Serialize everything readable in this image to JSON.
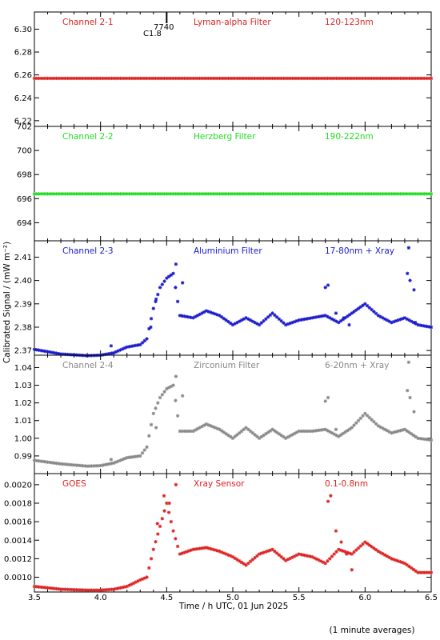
{
  "figure": {
    "xlabel": "Time / h UTC, 01 Jun 2025",
    "ylabel": "Calibrated Signal / (mW m⁻²)",
    "footnote": "(1 minute averages)",
    "marker_top": [
      "7740",
      "C1.8"
    ]
  },
  "chart_data": {
    "type": "scatter",
    "xlim": [
      3.5,
      6.5
    ],
    "x_ticks": [
      3.5,
      4.0,
      4.5,
      5.0,
      5.5,
      6.0,
      6.5
    ],
    "x_tick_labels": [
      "3.5",
      "4.0",
      "4.5",
      "5.0",
      "5.5",
      "6.0",
      "6.5"
    ],
    "x_minor_step": 0.1,
    "flare_marker_time": 4.5,
    "panels": [
      {
        "name": "Channel 2-1",
        "filter": "Lyman-alpha Filter",
        "band": "120-123nm",
        "color": "#dd2222",
        "ylim": [
          6.215,
          6.315
        ],
        "y_ticks": [
          6.22,
          6.24,
          6.26,
          6.28,
          6.3
        ],
        "y_tick_labels": [
          "6.22",
          "6.24",
          "6.26",
          "6.28",
          "6.30"
        ],
        "x_anchors": [
          3.5,
          6.5
        ],
        "y_anchors": [
          6.257,
          6.257
        ]
      },
      {
        "name": "Channel 2-2",
        "filter": "Herzberg Filter",
        "band": "190-222nm",
        "color": "#22dd22",
        "ylim": [
          692.5,
          702.0
        ],
        "y_ticks": [
          694,
          696,
          698,
          700,
          702
        ],
        "y_tick_labels": [
          "694",
          "696",
          "698",
          "700",
          "702"
        ],
        "x_anchors": [
          3.5,
          6.5
        ],
        "y_anchors": [
          696.4,
          696.4
        ]
      },
      {
        "name": "Channel 2-3",
        "filter": "Aluminium Filter",
        "band": "17-80nm + Xray",
        "color": "#1a1acc",
        "ylim": [
          2.368,
          2.417
        ],
        "y_ticks": [
          2.37,
          2.38,
          2.39,
          2.4,
          2.41
        ],
        "y_tick_labels": [
          "2.37",
          "2.38",
          "2.39",
          "2.40",
          "2.41"
        ],
        "x_anchors": [
          3.5,
          3.7,
          3.9,
          4.0,
          4.1,
          4.2,
          4.3,
          4.35,
          4.4,
          4.45,
          4.5,
          4.55,
          4.6,
          4.7,
          4.8,
          4.9,
          5.0,
          5.1,
          5.2,
          5.3,
          5.4,
          5.5,
          5.6,
          5.7,
          5.8,
          5.9,
          6.0,
          6.1,
          6.2,
          6.3,
          6.4,
          6.5
        ],
        "y_anchors": [
          2.3705,
          2.3685,
          2.3678,
          2.368,
          2.369,
          2.3715,
          2.3725,
          2.375,
          2.388,
          2.397,
          2.401,
          2.403,
          2.385,
          2.384,
          2.387,
          2.385,
          2.381,
          2.384,
          2.381,
          2.386,
          2.381,
          2.383,
          2.384,
          2.385,
          2.382,
          2.386,
          2.39,
          2.385,
          2.382,
          2.384,
          2.381,
          2.38
        ],
        "outliers": [
          [
            4.08,
            2.372
          ],
          [
            4.38,
            2.38
          ],
          [
            4.42,
            2.392
          ],
          [
            4.57,
            2.407
          ],
          [
            4.62,
            2.399
          ],
          [
            5.7,
            2.397
          ],
          [
            5.72,
            2.398
          ],
          [
            5.78,
            2.386
          ],
          [
            5.84,
            2.384
          ],
          [
            5.88,
            2.381
          ],
          [
            6.32,
            2.403
          ],
          [
            6.34,
            2.4
          ],
          [
            6.37,
            2.396
          ],
          [
            6.33,
            2.414
          ],
          [
            6.38,
            2.382
          ]
        ]
      },
      {
        "name": "Channel 2-4",
        "filter": "Zirconium Filter",
        "band": "6-20nm + Xray",
        "color": "#888888",
        "ylim": [
          0.98,
          1.047
        ],
        "y_ticks": [
          0.99,
          1.0,
          1.01,
          1.02,
          1.03,
          1.04
        ],
        "y_tick_labels": [
          "0.99",
          "1.00",
          "1.01",
          "1.02",
          "1.03",
          "1.04"
        ],
        "x_anchors": [
          3.5,
          3.7,
          3.9,
          4.0,
          4.1,
          4.2,
          4.3,
          4.35,
          4.4,
          4.45,
          4.5,
          4.55,
          4.6,
          4.7,
          4.8,
          4.9,
          5.0,
          5.1,
          5.2,
          5.3,
          5.4,
          5.5,
          5.6,
          5.7,
          5.8,
          5.9,
          6.0,
          6.1,
          6.2,
          6.3,
          6.4,
          6.5
        ],
        "y_anchors": [
          0.9875,
          0.9855,
          0.9842,
          0.9845,
          0.986,
          0.989,
          0.99,
          0.995,
          1.014,
          1.023,
          1.028,
          1.03,
          1.004,
          1.004,
          1.008,
          1.005,
          1.0,
          1.006,
          1.0,
          1.005,
          1.0,
          1.004,
          1.004,
          1.005,
          1.001,
          1.006,
          1.014,
          1.007,
          1.003,
          1.005,
          1.0,
          0.999
        ],
        "outliers": [
          [
            4.08,
            0.988
          ],
          [
            4.42,
            1.006
          ],
          [
            4.57,
            1.035
          ],
          [
            4.62,
            1.024
          ],
          [
            5.7,
            1.021
          ],
          [
            5.72,
            1.023
          ],
          [
            5.78,
            1.005
          ],
          [
            6.32,
            1.027
          ],
          [
            6.34,
            1.023
          ],
          [
            6.37,
            1.015
          ],
          [
            6.33,
            1.043
          ]
        ]
      },
      {
        "name": "GOES",
        "filter": "Xray Sensor",
        "band": "0.1-0.8nm",
        "color": "#dd2222",
        "ylim": [
          0.00084,
          0.00212
        ],
        "y_ticks": [
          0.001,
          0.0012,
          0.0014,
          0.0016,
          0.0018,
          0.002
        ],
        "y_tick_labels": [
          "0.0010",
          "0.0012",
          "0.0014",
          "0.0016",
          "0.0018",
          "0.0020"
        ],
        "x_anchors": [
          3.5,
          3.7,
          3.9,
          4.0,
          4.1,
          4.2,
          4.3,
          4.35,
          4.4,
          4.45,
          4.5,
          4.55,
          4.6,
          4.7,
          4.8,
          4.9,
          5.0,
          5.1,
          5.2,
          5.3,
          5.4,
          5.5,
          5.6,
          5.7,
          5.8,
          5.9,
          6.0,
          6.1,
          6.2,
          6.3,
          6.4,
          6.5
        ],
        "y_anchors": [
          0.0009,
          0.00087,
          0.00086,
          0.00086,
          0.00087,
          0.0009,
          0.00097,
          0.001,
          0.0013,
          0.00155,
          0.0018,
          0.0015,
          0.00125,
          0.0013,
          0.00132,
          0.00128,
          0.00122,
          0.00113,
          0.00125,
          0.0013,
          0.00118,
          0.00125,
          0.00122,
          0.00115,
          0.0013,
          0.00125,
          0.00138,
          0.00128,
          0.0012,
          0.00115,
          0.00105,
          0.00105
        ],
        "outliers": [
          [
            4.43,
            0.00158
          ],
          [
            4.48,
            0.00188
          ],
          [
            4.52,
            0.0018
          ],
          [
            4.57,
            0.002
          ],
          [
            5.72,
            0.00182
          ],
          [
            5.74,
            0.00188
          ],
          [
            5.78,
            0.0015
          ],
          [
            5.82,
            0.00138
          ],
          [
            5.86,
            0.00125
          ],
          [
            5.9,
            0.00108
          ]
        ]
      }
    ]
  }
}
